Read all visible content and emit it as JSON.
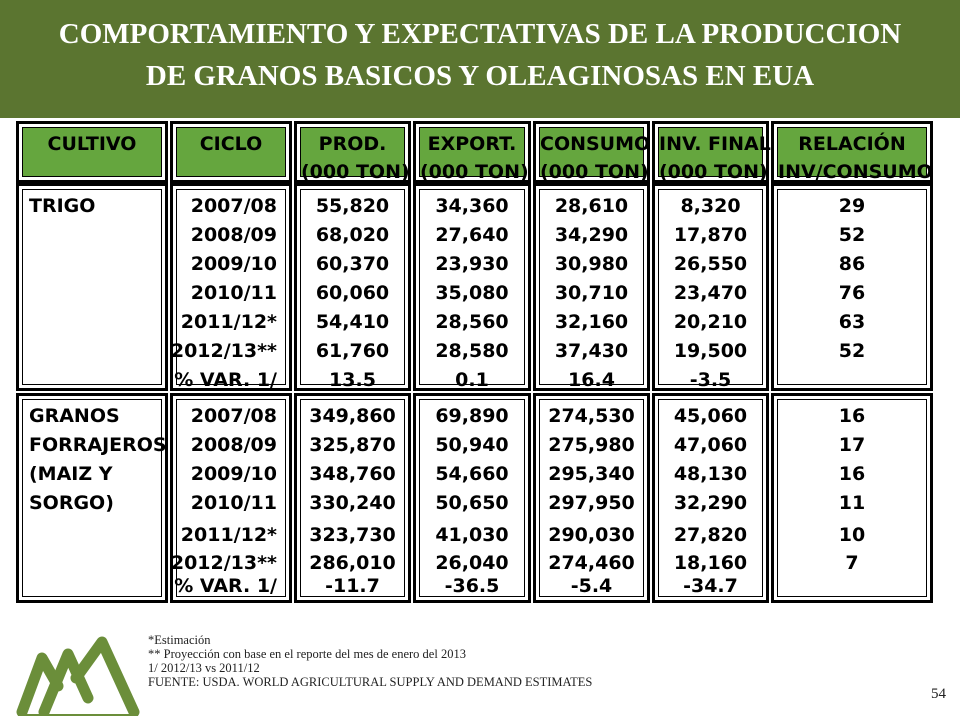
{
  "title": {
    "line1": "COMPORTAMIENTO Y EXPECTATIVAS DE LA PRODUCCION",
    "line2": "DE GRANOS BASICOS Y OLEAGINOSAS EN EUA"
  },
  "header": {
    "cultivo": "CULTIVO",
    "ciclo": "CICLO",
    "prod": [
      "PROD.",
      "(000 TON)"
    ],
    "export": [
      "EXPORT.",
      "(000 TON)"
    ],
    "consumo": [
      "CONSUMO",
      "(000 TON)"
    ],
    "inv": [
      "INV. FINAL",
      "(000 TON)"
    ],
    "relacion": [
      "RELACIÓN",
      "INV/CONSUMO"
    ]
  },
  "trigo": {
    "crop": [
      "TRIGO"
    ],
    "ciclo": [
      "2007/08",
      "2008/09",
      "2009/10",
      "2010/11",
      "2011/12*",
      "2012/13**",
      "% VAR. 1/"
    ],
    "prod": [
      "55,820",
      "68,020",
      "60,370",
      "60,060",
      "54,410",
      "61,760",
      "13.5"
    ],
    "export": [
      "34,360",
      "27,640",
      "23,930",
      "35,080",
      "28,560",
      "28,580",
      "0.1"
    ],
    "consumo": [
      "28,610",
      "34,290",
      "30,980",
      "30,710",
      "32,160",
      "37,430",
      "16.4"
    ],
    "inv": [
      "8,320",
      "17,870",
      "26,550",
      "23,470",
      "20,210",
      "19,500",
      "-3.5"
    ],
    "relacion": [
      "29",
      "52",
      "86",
      "76",
      "63",
      "52",
      ""
    ]
  },
  "granos": {
    "crop": [
      "GRANOS",
      "FORRAJEROS",
      "(MAIZ Y",
      "SORGO)"
    ],
    "ciclo": [
      "2007/08",
      "2008/09",
      "2009/10",
      "2010/11",
      "2011/12*",
      "2012/13**",
      "% VAR. 1/"
    ],
    "prod": [
      "349,860",
      "325,870",
      "348,760",
      "330,240",
      "323,730",
      "286,010",
      "-11.7"
    ],
    "export": [
      "69,890",
      "50,940",
      "54,660",
      "50,650",
      "41,030",
      "26,040",
      "-36.5"
    ],
    "consumo": [
      "274,530",
      "275,980",
      "295,340",
      "297,950",
      "290,030",
      "274,460",
      "-5.4"
    ],
    "inv": [
      "45,060",
      "47,060",
      "48,130",
      "32,290",
      "27,820",
      "18,160",
      "-34.7"
    ],
    "relacion": [
      "16",
      "17",
      "16",
      "11",
      "10",
      "7",
      ""
    ]
  },
  "footnotes": [
    "*Estimación",
    "** Proyección con base en el reporte  del mes de enero del 2013",
    "1/ 2012/13 vs 2011/12",
    "FUENTE: USDA. WORLD AGRICULTURAL SUPPLY AND DEMAND ESTIMATES"
  ],
  "page_number": "54",
  "colors": {
    "title_bg": "#5b7530",
    "header_bg": "#65a63e",
    "logo": "#6b8e3a"
  },
  "logo_icon": "mountains-logo-icon"
}
